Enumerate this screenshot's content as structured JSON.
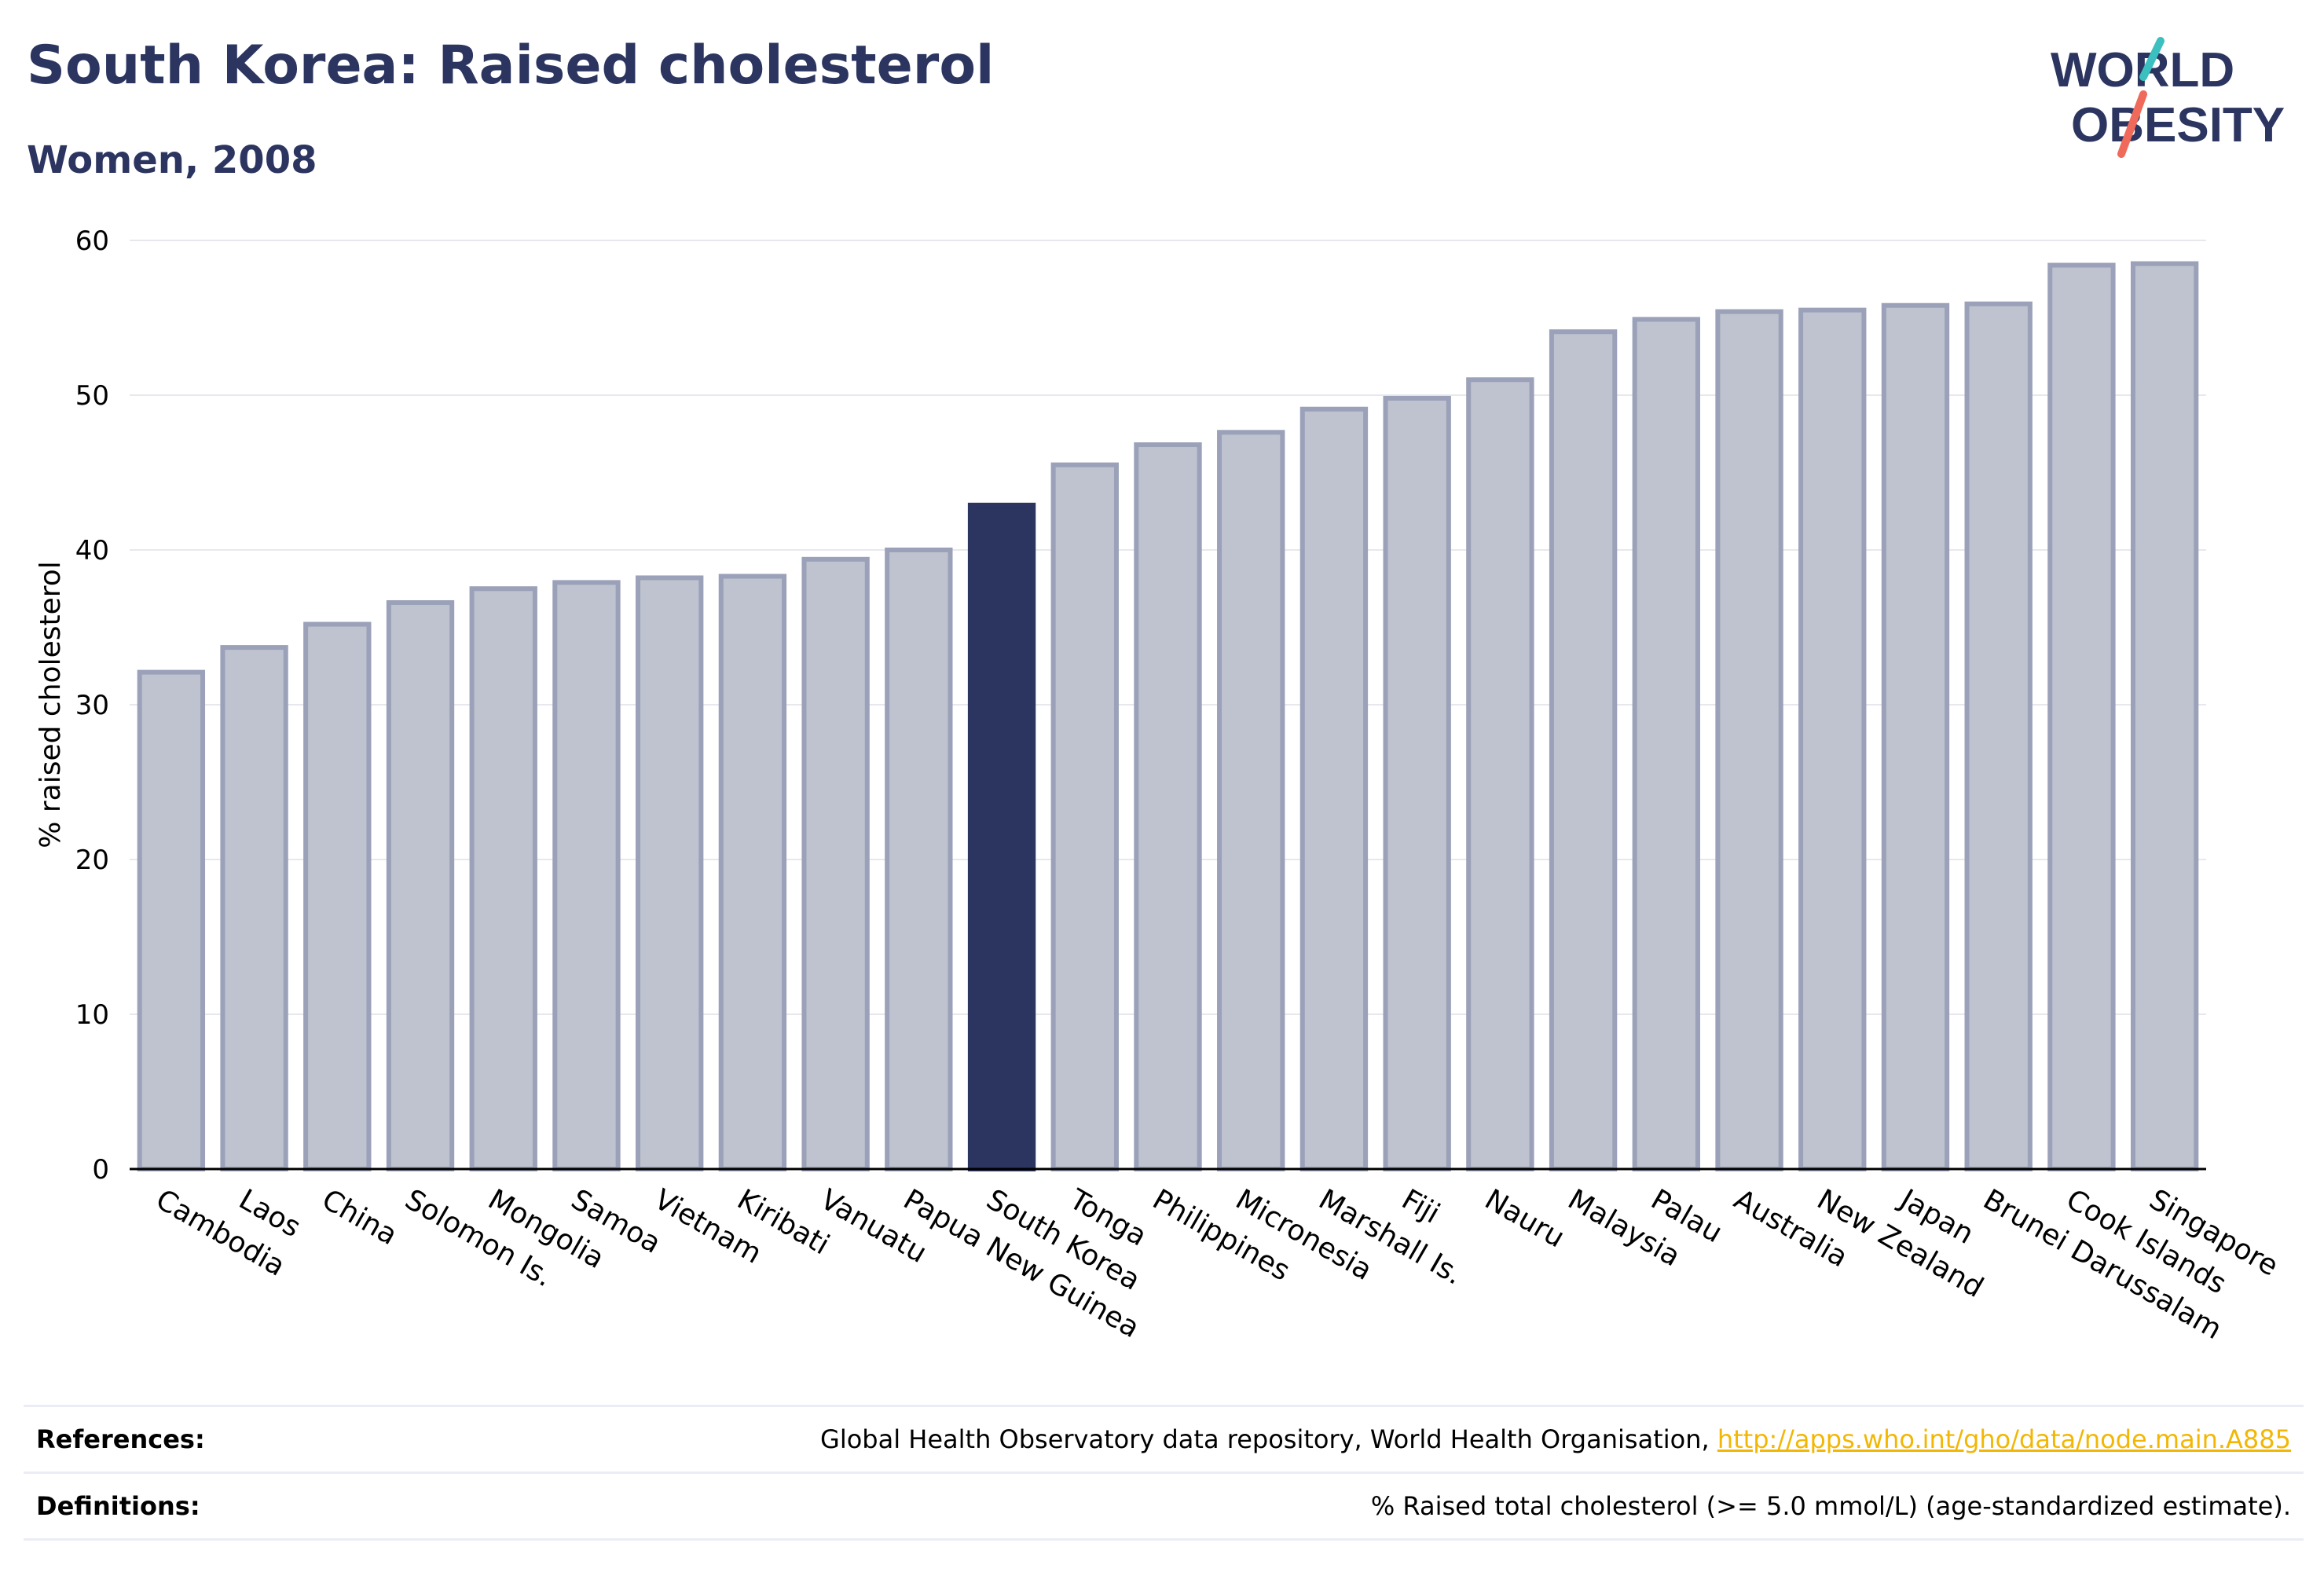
{
  "header": {
    "title": "South Korea: Raised cholesterol",
    "subtitle": "Women, 2008"
  },
  "logo": {
    "line1": "WORLD",
    "line2": "OBESITY"
  },
  "colors": {
    "title": "#2b3560",
    "bar_default_fill": "#bfc3cf",
    "bar_default_stroke": "#9aa1b8",
    "bar_highlight": "#2b3560",
    "link": "#f2b705",
    "logo_teal": "#3bbfbf",
    "logo_coral": "#ef6a5a"
  },
  "chart_data": {
    "type": "bar",
    "title": "South Korea: Raised cholesterol",
    "subtitle": "Women, 2008",
    "ylabel": "% raised cholesterol",
    "xlabel": "",
    "ylim": [
      0,
      60
    ],
    "yticks": [
      0,
      10,
      20,
      30,
      40,
      50,
      60
    ],
    "grid": true,
    "highlight": "South Korea",
    "categories": [
      "Cambodia",
      "Laos",
      "China",
      "Solomon Is.",
      "Mongolia",
      "Samoa",
      "Vietnam",
      "Kiribati",
      "Vanuatu",
      "Papua New Guinea",
      "South Korea",
      "Tonga",
      "Philippines",
      "Micronesia",
      "Marshall Is.",
      "Fiji",
      "Nauru",
      "Malaysia",
      "Palau",
      "Australia",
      "New Zealand",
      "Japan",
      "Brunei Darussalam",
      "Cook Islands",
      "Singapore"
    ],
    "values": [
      32.1,
      33.7,
      35.2,
      36.6,
      37.5,
      37.9,
      38.2,
      38.3,
      39.4,
      40.0,
      42.9,
      45.5,
      46.8,
      47.6,
      49.1,
      49.8,
      51.0,
      54.1,
      54.9,
      55.4,
      55.5,
      55.8,
      55.9,
      58.4,
      58.5
    ]
  },
  "references": {
    "label": "References:",
    "text": "Global Health Observatory data repository, World Health Organisation,",
    "link": "http://apps.who.int/gho/data/node.main.A885"
  },
  "definitions": {
    "label": "Definitions:",
    "text": "% Raised total cholesterol (>= 5.0 mmol/L) (age-standardized estimate)."
  }
}
